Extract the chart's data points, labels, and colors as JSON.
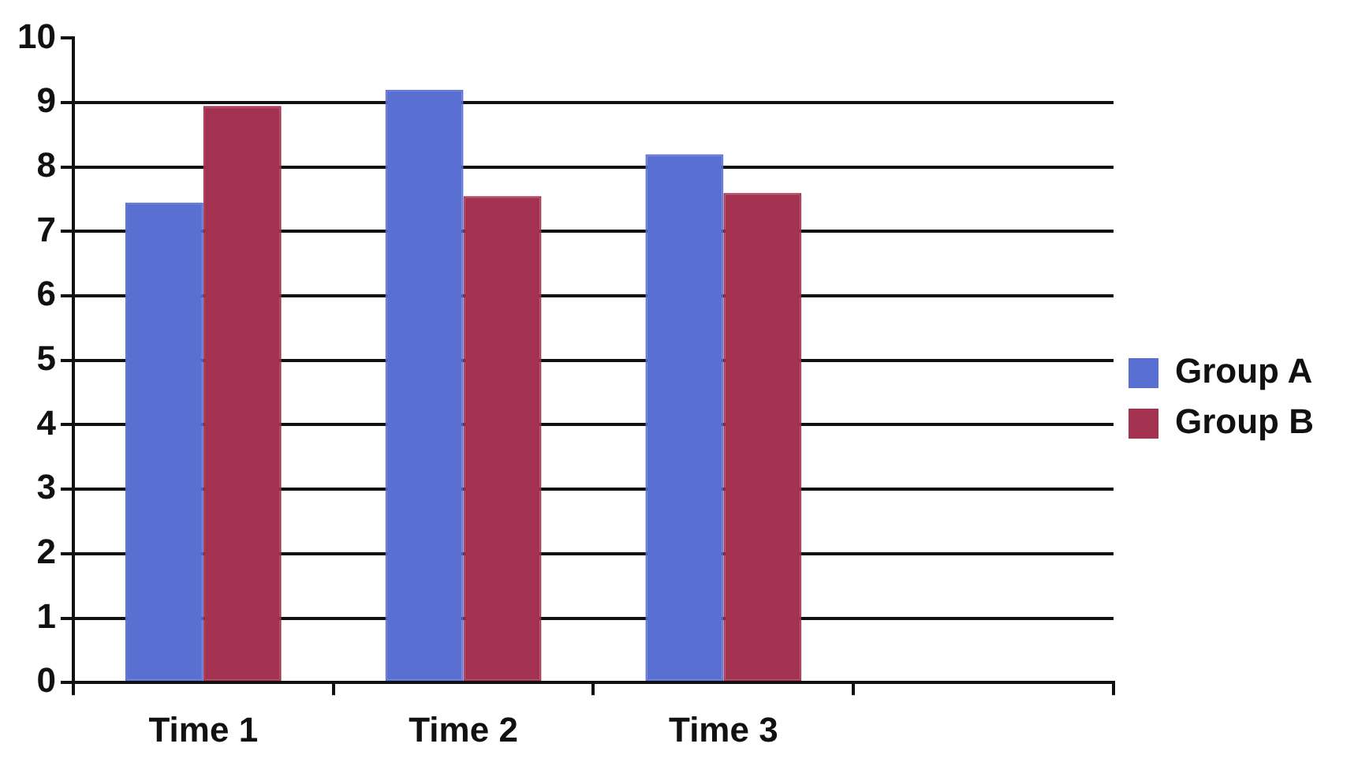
{
  "chart_data": {
    "type": "bar",
    "categories": [
      "Time 1",
      "Time 2",
      "Time 3",
      null
    ],
    "series": [
      {
        "name": "Group A",
        "color": "#5a6fd2",
        "values": [
          7.45,
          9.2,
          8.2,
          null
        ]
      },
      {
        "name": "Group B",
        "color": "#a33250",
        "values": [
          8.95,
          7.55,
          7.6,
          null
        ]
      }
    ],
    "ylim": [
      0,
      10
    ],
    "yticks": [
      0,
      1,
      2,
      3,
      4,
      5,
      6,
      7,
      8,
      9,
      10
    ],
    "grid": "y",
    "legend": "right"
  }
}
